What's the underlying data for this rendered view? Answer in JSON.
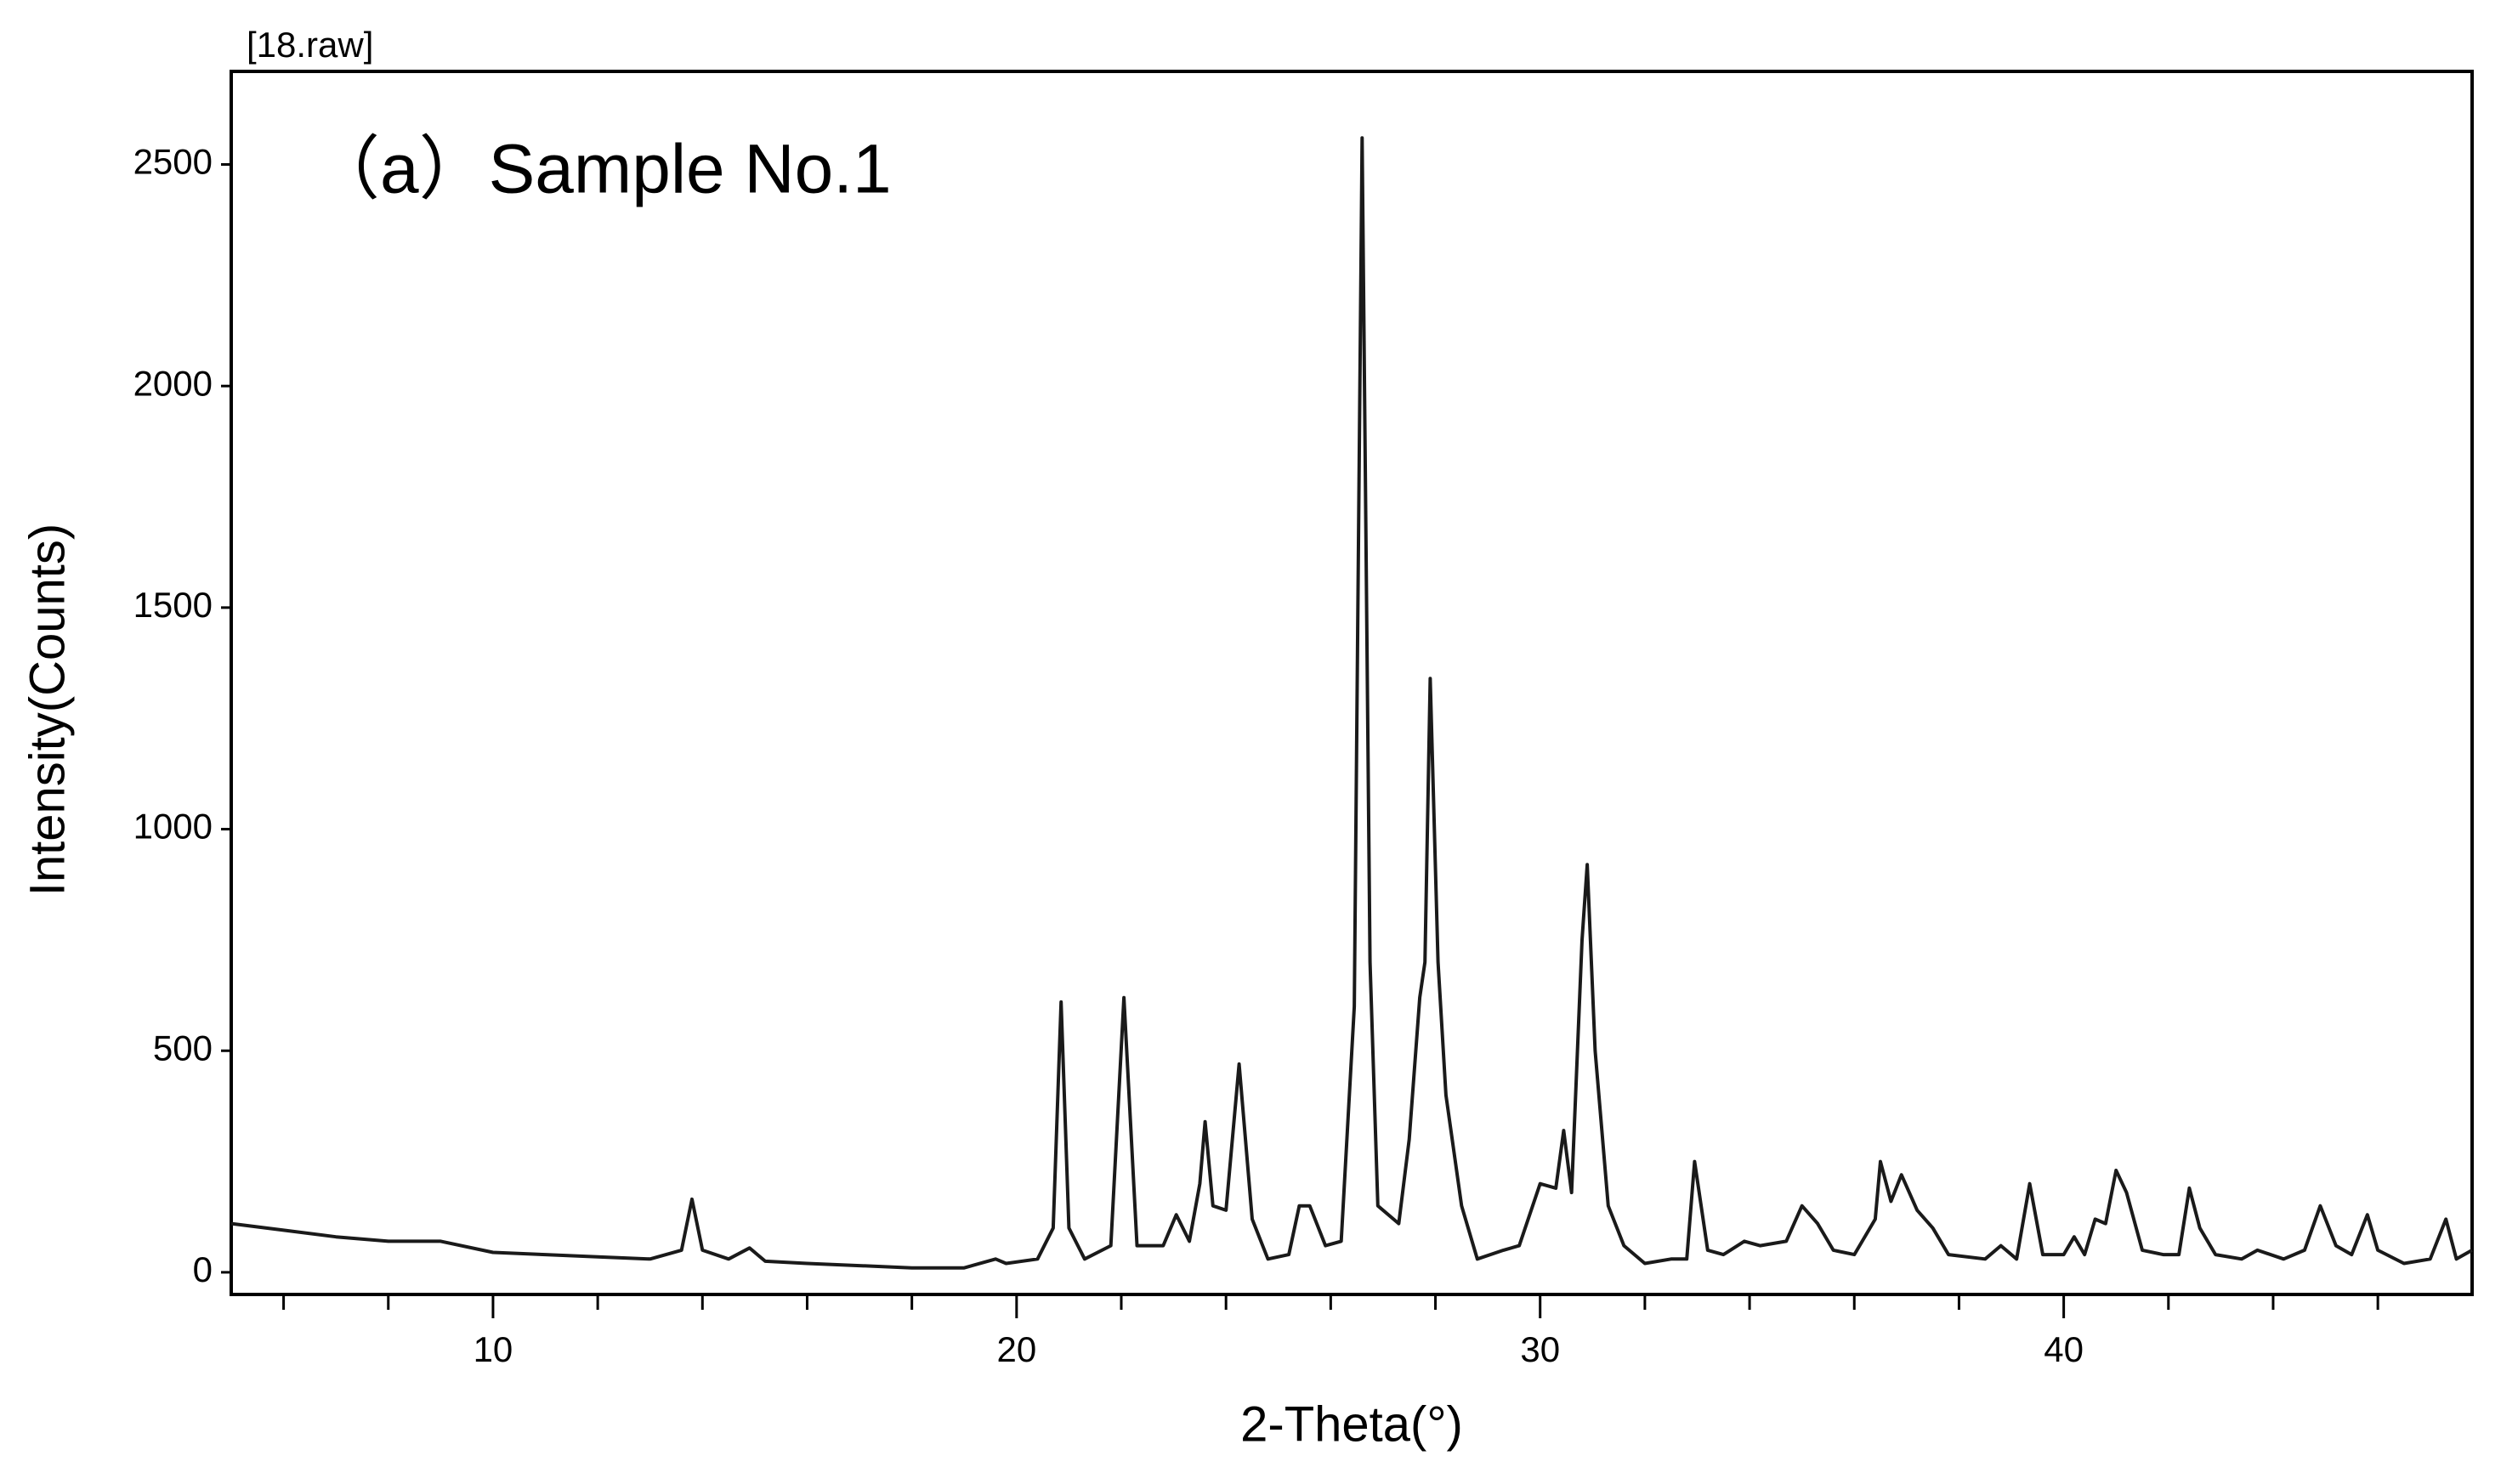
{
  "chart_data": {
    "type": "line",
    "title": "[18.raw]",
    "annotation": "（a）Sample No.1",
    "x_label": "2-Theta(°)",
    "y_label": "Intensity(Counts)",
    "xlim": [
      5,
      47.8
    ],
    "ylim": [
      -50,
      2710
    ],
    "xticks": [
      10,
      20,
      30,
      40
    ],
    "xminor_ticks": [
      6,
      8,
      12,
      14,
      16,
      18,
      22,
      24,
      26,
      28,
      32,
      34,
      36,
      38,
      42,
      44,
      46
    ],
    "yticks": [
      0,
      500,
      1000,
      1500,
      2000,
      2500
    ],
    "grid": false,
    "series": [
      {
        "name": "18.raw",
        "color": "#1a1a1a",
        "x": [
          5,
          6,
          7,
          8,
          9,
          10,
          11,
          12,
          13,
          13.6,
          13.8,
          14.0,
          14.5,
          14.9,
          15.2,
          16,
          17,
          18,
          19,
          19.6,
          19.8,
          20.4,
          20.7,
          20.85,
          21.0,
          21.3,
          21.8,
          22.05,
          22.3,
          22.8,
          23.05,
          23.3,
          23.5,
          23.6,
          23.75,
          24.0,
          24.25,
          24.5,
          24.8,
          25.2,
          25.4,
          25.6,
          25.9,
          26.2,
          26.45,
          26.6,
          26.75,
          26.9,
          27.3,
          27.5,
          27.7,
          27.8,
          27.9,
          28.05,
          28.2,
          28.5,
          28.8,
          29.3,
          29.6,
          30.0,
          30.3,
          30.45,
          30.6,
          30.8,
          30.9,
          31.05,
          31.3,
          31.6,
          32.0,
          32.5,
          32.8,
          32.95,
          33.2,
          33.5,
          33.9,
          34.2,
          34.7,
          35.0,
          35.3,
          35.6,
          36.0,
          36.4,
          36.5,
          36.7,
          36.9,
          37.2,
          37.5,
          37.8,
          38.5,
          38.8,
          39.1,
          39.35,
          39.6,
          40.0,
          40.2,
          40.4,
          40.6,
          40.8,
          41.0,
          41.2,
          41.5,
          41.9,
          42.2,
          42.4,
          42.6,
          42.9,
          43.4,
          43.7,
          44.2,
          44.6,
          44.9,
          45.2,
          45.5,
          45.8,
          46.0,
          46.5,
          47.0,
          47.3,
          47.5,
          47.8
        ],
        "values": [
          110,
          95,
          80,
          70,
          70,
          45,
          40,
          35,
          30,
          50,
          165,
          50,
          30,
          55,
          25,
          20,
          15,
          10,
          10,
          30,
          20,
          30,
          100,
          610,
          100,
          30,
          60,
          620,
          60,
          60,
          130,
          70,
          200,
          340,
          150,
          140,
          470,
          120,
          30,
          40,
          150,
          150,
          60,
          70,
          600,
          2560,
          700,
          150,
          110,
          300,
          620,
          700,
          1340,
          700,
          400,
          150,
          30,
          50,
          60,
          200,
          190,
          320,
          180,
          750,
          920,
          500,
          150,
          60,
          20,
          30,
          30,
          250,
          50,
          40,
          70,
          60,
          70,
          150,
          110,
          50,
          40,
          120,
          250,
          160,
          220,
          140,
          100,
          40,
          30,
          60,
          30,
          200,
          40,
          40,
          80,
          40,
          120,
          110,
          230,
          180,
          50,
          40,
          40,
          190,
          100,
          40,
          30,
          50,
          30,
          50,
          150,
          60,
          40,
          130,
          50,
          20,
          30,
          120,
          30,
          50
        ]
      }
    ]
  }
}
